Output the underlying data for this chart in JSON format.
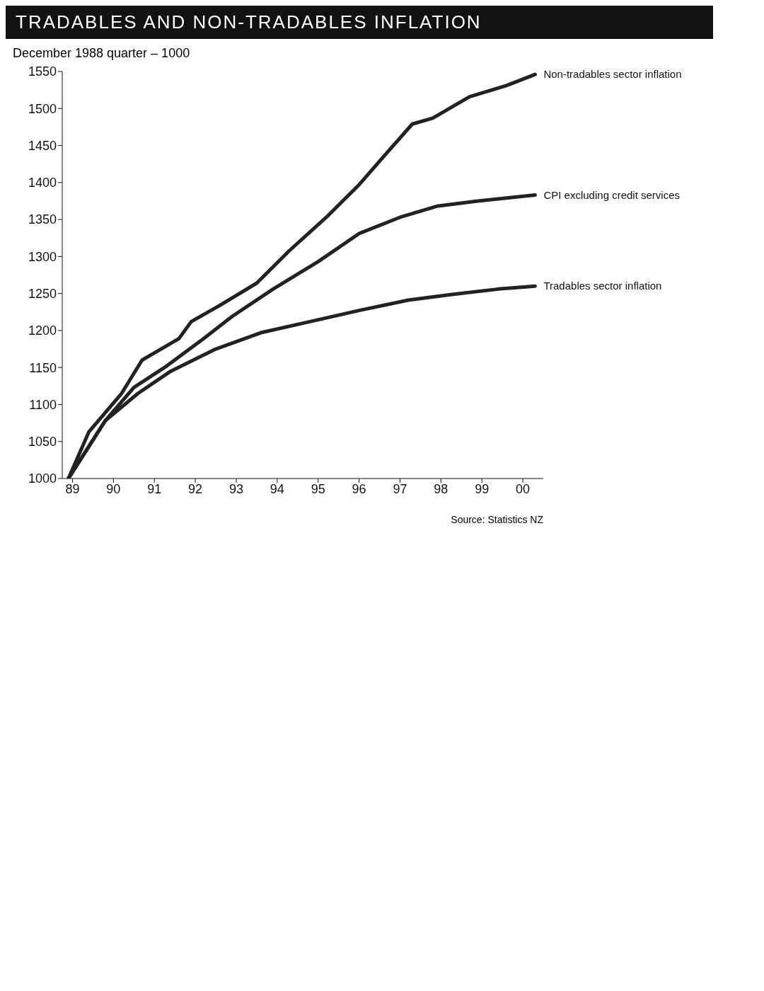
{
  "chart_data": {
    "type": "line",
    "title": "TRADABLES AND NON-TRADABLES INFLATION",
    "ylabel": "December 1988 quarter – 1000",
    "xlim": [
      1988.75,
      2000.5
    ],
    "xticks": [
      {
        "value": 1989,
        "label": "89"
      },
      {
        "value": 1990,
        "label": "90"
      },
      {
        "value": 1991,
        "label": "91"
      },
      {
        "value": 1992,
        "label": "92"
      },
      {
        "value": 1993,
        "label": "93"
      },
      {
        "value": 1994,
        "label": "94"
      },
      {
        "value": 1995,
        "label": "95"
      },
      {
        "value": 1996,
        "label": "96"
      },
      {
        "value": 1997,
        "label": "97"
      },
      {
        "value": 1998,
        "label": "98"
      },
      {
        "value": 1999,
        "label": "99"
      },
      {
        "value": 2000,
        "label": "00"
      }
    ],
    "ylim": [
      1000,
      1550
    ],
    "yticks": [
      1000,
      1050,
      1100,
      1150,
      1200,
      1250,
      1300,
      1350,
      1400,
      1450,
      1500,
      1550
    ],
    "grid": false,
    "legend": false,
    "marker": "none",
    "line_style": "solid",
    "annotations": [
      "Source: Statistics NZ"
    ],
    "series": [
      {
        "name": "Non-tradables sector inflation",
        "color": "#222222",
        "x": [
          1988.9,
          1989.4,
          1990.2,
          1990.7,
          1991.6,
          1991.9,
          1992.6,
          1993.5,
          1994.3,
          1995.2,
          1996.0,
          1996.6,
          1997.3,
          1997.8,
          1998.7,
          1999.6,
          2000.3
        ],
        "values": [
          1000,
          1063,
          1115,
          1160,
          1189,
          1212,
          1234,
          1264,
          1308,
          1353,
          1397,
          1435,
          1479,
          1487,
          1516,
          1531,
          1546
        ]
      },
      {
        "name": "CPI excluding credit services",
        "color": "#222222",
        "x": [
          1988.9,
          1989.8,
          1990.5,
          1991.3,
          1992.2,
          1992.9,
          1993.9,
          1995.0,
          1996.0,
          1997.0,
          1997.9,
          1998.9,
          2000.3
        ],
        "values": [
          1000,
          1078,
          1123,
          1152,
          1189,
          1219,
          1256,
          1293,
          1331,
          1353,
          1368,
          1375,
          1383
        ]
      },
      {
        "name": "Tradables sector inflation",
        "color": "#222222",
        "x": [
          1988.9,
          1989.8,
          1990.6,
          1991.4,
          1992.5,
          1993.6,
          1994.8,
          1996.0,
          1997.2,
          1998.3,
          1999.4,
          2000.3
        ],
        "values": [
          1000,
          1078,
          1115,
          1145,
          1175,
          1197,
          1212,
          1227,
          1241,
          1249,
          1256,
          1260
        ]
      }
    ]
  }
}
